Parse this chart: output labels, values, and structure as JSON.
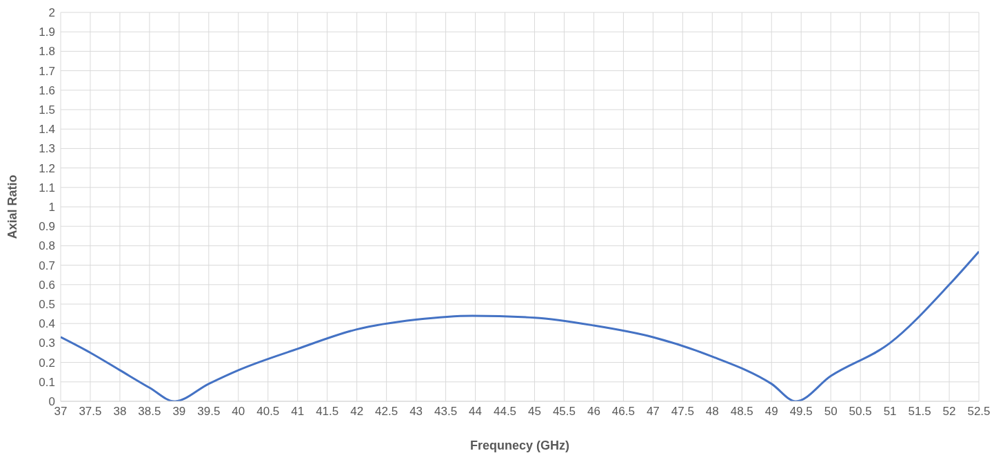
{
  "chart_data": {
    "type": "line",
    "xlabel": "Frequnecy (GHz)",
    "ylabel": "Axial Ratio",
    "xlim": [
      37,
      52.5
    ],
    "xticks": [
      37,
      37.5,
      38,
      38.5,
      39,
      39.5,
      40,
      40.5,
      41,
      41.5,
      42,
      42.5,
      43,
      43.5,
      44,
      44.5,
      45,
      45.5,
      46,
      46.5,
      47,
      47.5,
      48,
      48.5,
      49,
      49.5,
      50,
      50.5,
      51,
      51.5,
      52,
      52.5
    ],
    "ylim": [
      0,
      2
    ],
    "yticks": [
      0,
      0.1,
      0.2,
      0.3,
      0.4,
      0.5,
      0.6,
      0.7,
      0.8,
      0.9,
      1,
      1.1,
      1.2,
      1.3,
      1.4,
      1.5,
      1.6,
      1.7,
      1.8,
      1.9,
      2
    ],
    "grid": true,
    "marker": "none",
    "line_style": "solid",
    "series": [
      {
        "color": "#4472c4",
        "x": [
          37,
          37.5,
          38,
          38.5,
          38.92,
          39.5,
          40,
          41,
          42,
          43,
          43.95,
          45,
          46,
          47,
          48,
          49,
          49.41,
          50,
          51,
          52,
          52.5
        ],
        "values": [
          0.33,
          0.25,
          0.16,
          0.07,
          0,
          0.09,
          0.16,
          0.27,
          0.37,
          0.42,
          0.44,
          0.43,
          0.39,
          0.33,
          0.23,
          0.09,
          0,
          0.13,
          0.3,
          0.6,
          0.77
        ]
      }
    ]
  }
}
